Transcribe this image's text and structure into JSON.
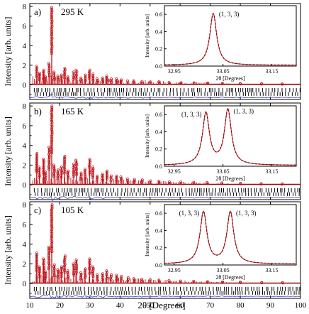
{
  "colors": {
    "observed": "#c0141c",
    "calculated": "#8a0a0a",
    "difference": "#3d3dd6",
    "ticks": "#000000"
  },
  "figure": {
    "xlabel": "2θ [Degrees]",
    "ylabel": "Intensity [arb. units]",
    "xticks": [
      "10",
      "20",
      "30",
      "40",
      "50",
      "60",
      "70",
      "80",
      "90",
      "100"
    ]
  },
  "chart_data": [
    {
      "type": "line",
      "panel_label": "a)",
      "temperature": "295 K",
      "xlabel": "2θ [Degrees]",
      "ylabel": "Intensity [arb. units]",
      "xlim": [
        10,
        100
      ],
      "ylim": [
        -1.5,
        8.3
      ],
      "yticks": [
        "8",
        "6",
        "4",
        "2",
        "0"
      ],
      "series": [
        {
          "values_note": "observed + calculated pattern",
          "x": [
            12.3,
            13.2,
            14.6,
            15.2,
            16.4,
            17.3,
            18.1,
            19.4,
            20.5,
            21.6,
            22.7,
            24.6,
            25.5,
            27.0,
            28.4,
            29.9,
            31.0,
            32.4,
            34.2,
            35.6,
            37.0,
            38.9,
            40.4,
            42.6,
            44.7,
            47.3,
            50.1,
            53.0,
            56.4,
            60.2,
            64.5,
            69.0,
            74.0,
            80.0,
            87.0,
            94.0
          ],
          "y": [
            1.9,
            1.2,
            1.5,
            0.8,
            2.2,
            7.9,
            1.3,
            0.9,
            1.0,
            1.7,
            0.8,
            1.3,
            1.5,
            0.7,
            1.0,
            1.5,
            1.1,
            0.6,
            0.7,
            0.9,
            0.6,
            0.6,
            0.5,
            0.4,
            0.4,
            0.35,
            0.3,
            0.3,
            0.25,
            0.2,
            0.2,
            0.18,
            0.15,
            0.12,
            0.1,
            0.08
          ]
        }
      ],
      "inset": {
        "xlabel": "2θ [Degrees]",
        "ylabel": "Intensity [arb. units]",
        "xticks": [
          "32.95",
          "33.05",
          "33.15"
        ],
        "yticks": [
          "0.6",
          "0.4",
          "0.2",
          "0.0"
        ],
        "xlim": [
          32.93,
          33.2
        ],
        "ylim": [
          0,
          0.7
        ],
        "peaks": [
          {
            "center": 33.03,
            "height": 0.6,
            "label": "(1, 3, 3)"
          }
        ]
      }
    },
    {
      "type": "line",
      "panel_label": "b)",
      "temperature": "165 K",
      "xlabel": "2θ [Degrees]",
      "ylabel": "Intensity [arb. units]",
      "xlim": [
        10,
        100
      ],
      "ylim": [
        -1.5,
        8.3
      ],
      "yticks": [
        "8",
        "6",
        "4",
        "2",
        "0"
      ],
      "series": [
        {
          "values_note": "observed + calculated pattern",
          "x": [
            12.3,
            13.2,
            14.6,
            15.2,
            16.4,
            17.3,
            18.1,
            19.4,
            20.5,
            21.6,
            22.7,
            24.6,
            25.5,
            27.0,
            28.4,
            29.9,
            31.0,
            32.4,
            34.2,
            35.6,
            37.0,
            38.9,
            40.4,
            42.6,
            44.7,
            47.3,
            50.1,
            53.0,
            56.4,
            60.2,
            64.5,
            69.0,
            74.0,
            80.0,
            87.0,
            94.0
          ],
          "y": [
            3.2,
            1.8,
            2.6,
            1.3,
            3.8,
            8.0,
            2.0,
            1.5,
            1.8,
            2.9,
            1.4,
            2.1,
            2.5,
            1.2,
            1.6,
            2.6,
            1.8,
            0.9,
            1.1,
            1.4,
            0.9,
            0.9,
            0.8,
            0.6,
            0.55,
            0.5,
            0.4,
            0.38,
            0.3,
            0.28,
            0.25,
            0.22,
            0.2,
            0.15,
            0.12,
            0.1
          ]
        }
      ],
      "inset": {
        "xlabel": "2θ [Degrees]",
        "ylabel": "Intensity [arb. units]",
        "xticks": [
          "32.95",
          "33.05",
          "33.15"
        ],
        "yticks": [
          "0.6",
          "0.4",
          "0.2",
          "0.0"
        ],
        "xlim": [
          32.93,
          33.2
        ],
        "ylim": [
          0,
          0.7
        ],
        "peaks": [
          {
            "center": 33.015,
            "height": 0.6,
            "label": "(1, 3, 3)"
          },
          {
            "center": 33.06,
            "height": 0.64,
            "label": "(1, 3, 3)"
          }
        ]
      }
    },
    {
      "type": "line",
      "panel_label": "c)",
      "temperature": "105 K",
      "xlabel": "2θ [Degrees]",
      "ylabel": "Intensity [arb. units]",
      "xlim": [
        10,
        100
      ],
      "ylim": [
        -1.5,
        8.3
      ],
      "yticks": [
        "8",
        "6",
        "4",
        "2",
        "0"
      ],
      "series": [
        {
          "values_note": "observed + calculated pattern",
          "x": [
            12.3,
            13.2,
            14.6,
            15.2,
            16.4,
            17.3,
            18.1,
            19.4,
            20.5,
            21.6,
            22.7,
            24.6,
            25.5,
            27.0,
            28.4,
            29.9,
            31.0,
            32.4,
            34.2,
            35.6,
            37.0,
            38.9,
            40.4,
            42.6,
            44.7,
            47.3,
            50.1,
            53.0,
            56.4,
            60.2,
            64.5,
            69.0,
            74.0,
            80.0,
            87.0,
            94.0
          ],
          "y": [
            3.1,
            1.7,
            2.5,
            1.2,
            3.7,
            8.0,
            1.9,
            1.4,
            1.7,
            2.8,
            1.3,
            2.0,
            2.4,
            1.1,
            1.5,
            2.5,
            1.7,
            0.9,
            1.0,
            1.3,
            0.9,
            0.85,
            0.75,
            0.6,
            0.5,
            0.45,
            0.4,
            0.35,
            0.3,
            0.26,
            0.24,
            0.2,
            0.18,
            0.14,
            0.11,
            0.09
          ]
        }
      ],
      "inset": {
        "xlabel": "2θ [Degrees]",
        "ylabel": "Intensity [arb. units]",
        "xticks": [
          "32.95",
          "33.05",
          "33.15"
        ],
        "yticks": [
          "0.6",
          "0.4",
          "0.2",
          "0.0"
        ],
        "xlim": [
          32.93,
          33.2
        ],
        "ylim": [
          0,
          0.7
        ],
        "peaks": [
          {
            "center": 33.01,
            "height": 0.6,
            "label": "(1, 3, 3)"
          },
          {
            "center": 33.065,
            "height": 0.6,
            "label": "(1, 3, 3)"
          }
        ]
      }
    }
  ]
}
